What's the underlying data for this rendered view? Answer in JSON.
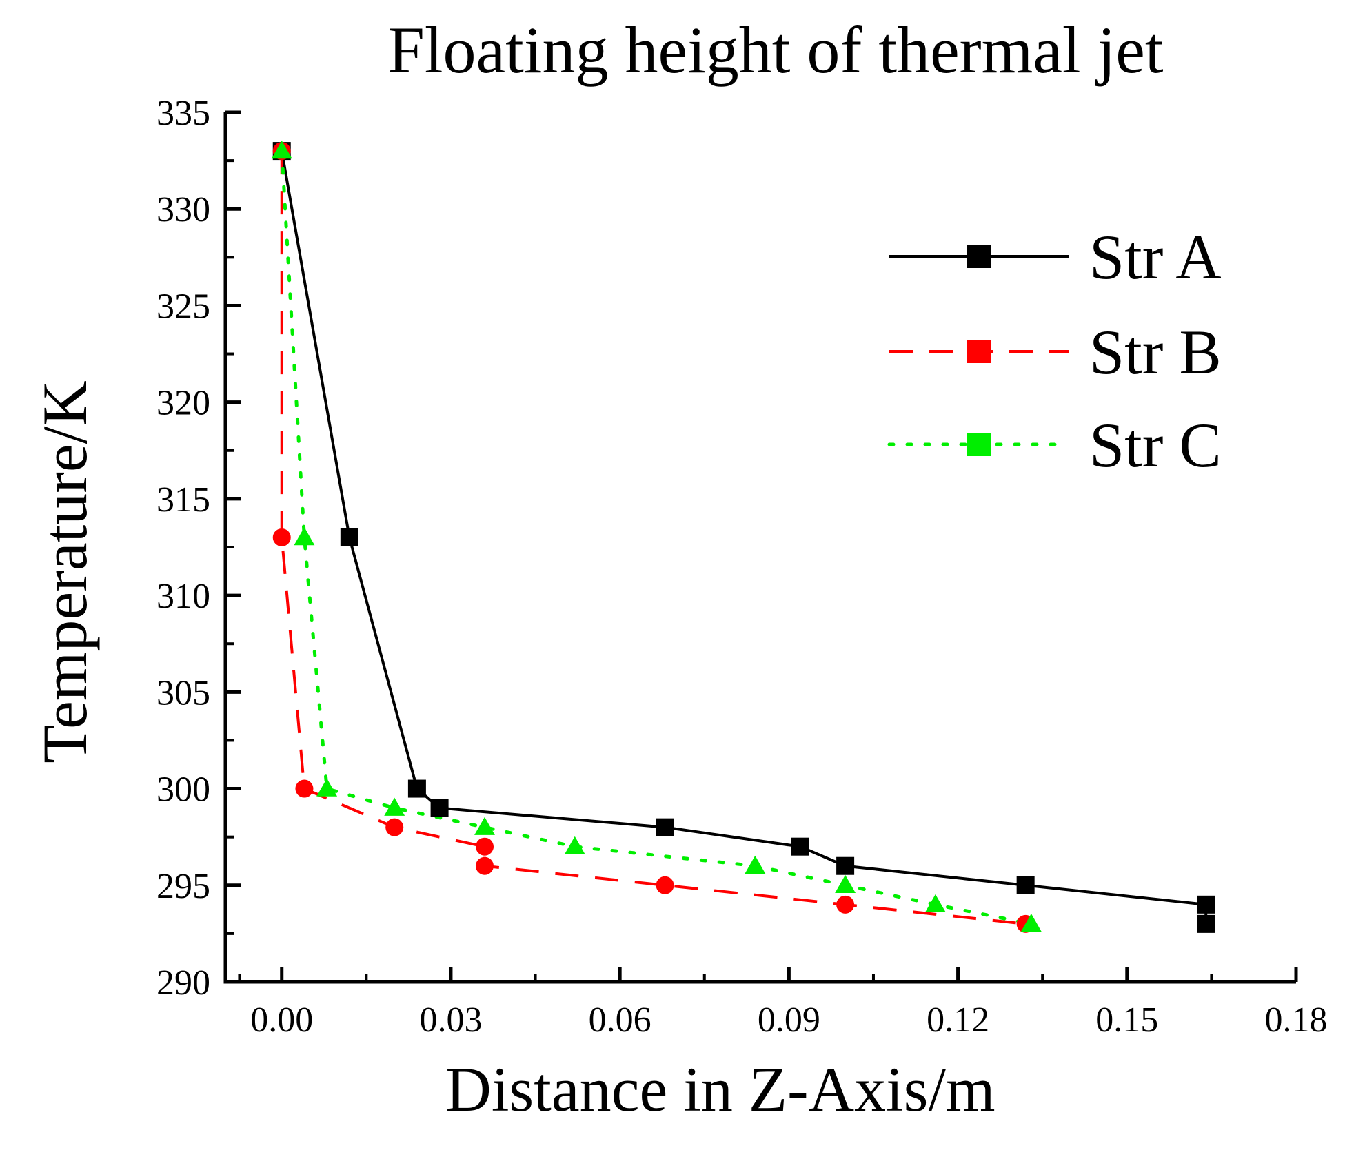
{
  "chart_data": {
    "type": "line",
    "title": "Floating height of thermal jet",
    "xlabel": "Distance in Z-Axis/m",
    "ylabel": "Temperature/K",
    "xlim": [
      -0.01,
      0.18
    ],
    "ylim": [
      290,
      335
    ],
    "xticks": [
      "0.00",
      "0.03",
      "0.06",
      "0.09",
      "0.12",
      "0.15",
      "0.18"
    ],
    "yticks": [
      "290",
      "295",
      "300",
      "305",
      "310",
      "315",
      "320",
      "325",
      "330",
      "335"
    ],
    "legend_position": "top-right",
    "grid": false,
    "series": [
      {
        "name": "Str A",
        "color": "#000000",
        "dash": "solid",
        "marker": "square",
        "x": [
          0.0,
          0.012,
          0.024,
          0.028,
          0.068,
          0.092,
          0.1,
          0.132,
          0.164,
          0.164
        ],
        "y": [
          333,
          313,
          300,
          299,
          298,
          297,
          296,
          295,
          294,
          293
        ]
      },
      {
        "name": "Str B",
        "color": "#ff0000",
        "dash": "dashed",
        "marker": "circle",
        "x": [
          0.0,
          0.0,
          0.004,
          0.02,
          0.036,
          0.036,
          0.068,
          0.1,
          0.132
        ],
        "y": [
          333,
          313,
          300,
          298,
          297,
          296,
          295,
          294,
          293
        ]
      },
      {
        "name": "Str C",
        "color": "#00ee00",
        "dash": "dotted",
        "marker": "triangle",
        "x": [
          0.0,
          0.004,
          0.008,
          0.02,
          0.036,
          0.052,
          0.084,
          0.1,
          0.116,
          0.133
        ],
        "y": [
          333,
          313,
          300,
          299,
          298,
          297,
          296,
          295,
          294,
          293
        ]
      }
    ]
  }
}
